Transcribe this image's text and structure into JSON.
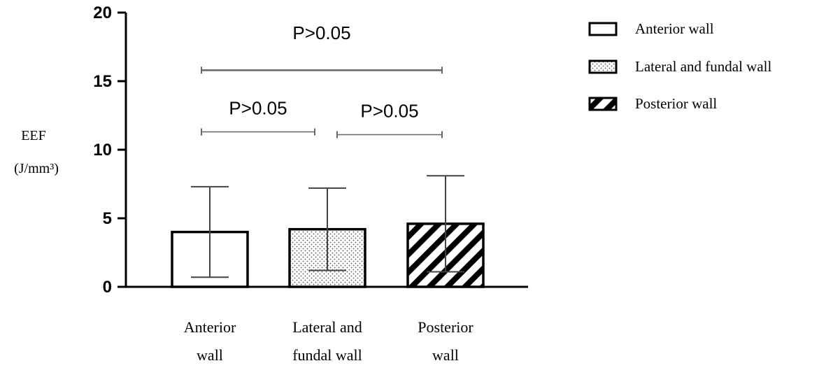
{
  "chart_data": {
    "type": "bar",
    "title": "",
    "ylabel_line1": "EEF",
    "ylabel_line2": "(J/mm³)",
    "ylim": [
      0,
      20
    ],
    "yticks": [
      0,
      5,
      10,
      15,
      20
    ],
    "categories": [
      {
        "line1": "Anterior",
        "line2": "wall"
      },
      {
        "line1": "Lateral  and",
        "line2": "fundal wall"
      },
      {
        "line1": "Posterior",
        "line2": "wall"
      }
    ],
    "values": [
      4.0,
      4.2,
      4.6
    ],
    "errors": [
      3.3,
      3.0,
      3.5
    ],
    "patterns": [
      "empty",
      "dots",
      "hatch"
    ],
    "legend": {
      "placement": "top-right",
      "entries": [
        {
          "label": "Anterior wall",
          "pattern": "empty"
        },
        {
          "label": "Lateral and fundal wall",
          "pattern": "dots"
        },
        {
          "label": "Posterior wall",
          "pattern": "hatch"
        }
      ]
    },
    "comparisons": [
      {
        "from": 0,
        "to": 2,
        "y": 15.8,
        "label": "P>0.05"
      },
      {
        "from": 0,
        "to": 1,
        "y": 11.3,
        "label": "P>0.05"
      },
      {
        "from": 1,
        "to": 2,
        "y": 11.1,
        "label": "P>0.05"
      }
    ]
  }
}
